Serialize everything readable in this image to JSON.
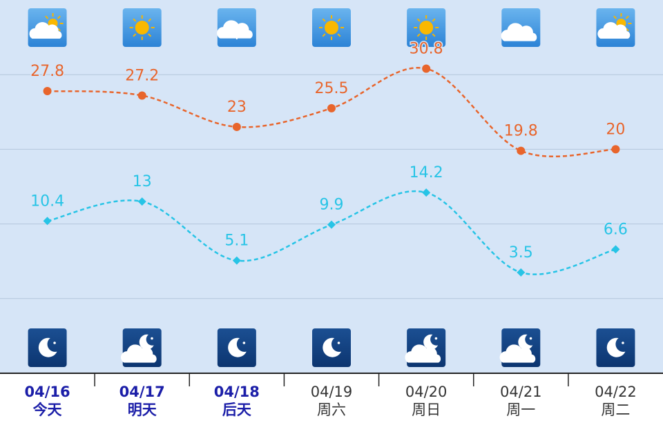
{
  "chart_data": {
    "type": "line",
    "categories": [
      "04/16",
      "04/17",
      "04/18",
      "04/19",
      "04/20",
      "04/21",
      "04/22"
    ],
    "sublabels": [
      "今天",
      "明天",
      "后天",
      "周六",
      "周日",
      "周一",
      "周二"
    ],
    "series": [
      {
        "color": "#e8652c",
        "values": [
          27.8,
          27.2,
          23,
          25.5,
          30.8,
          19.8,
          20
        ]
      },
      {
        "color": "#27c4e6",
        "values": [
          10.4,
          13,
          5.1,
          9.9,
          14.2,
          3.5,
          6.6
        ]
      }
    ],
    "ylim": [
      -10,
      40
    ],
    "yticks": [
      0,
      10,
      20,
      30
    ],
    "grid": true
  }
}
